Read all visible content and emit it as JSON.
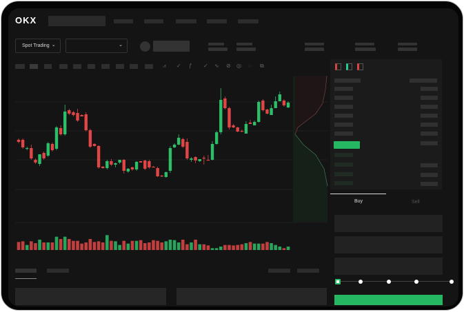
{
  "header": {
    "logo": "OKX"
  },
  "controls": {
    "market_type": "Spot Trading",
    "chevron": "⌄"
  },
  "orderbook": {
    "view_icons": [
      "orderbook-both-icon",
      "orderbook-buy-icon",
      "orderbook-sell-icon"
    ]
  },
  "trade": {
    "tabs": [
      {
        "label": "Buy",
        "active": true
      },
      {
        "label": "Sell",
        "active": false
      }
    ],
    "slider_level": 0,
    "slider_stops": 5,
    "submit_color": "#25b762"
  },
  "colors": {
    "up": "#2ebd68",
    "down": "#e04646",
    "background": "#141414"
  },
  "chart_data": {
    "type": "candlestick",
    "candles_ohlc": [
      [
        97,
        99,
        92,
        94
      ],
      [
        97,
        99,
        84,
        86
      ],
      [
        84,
        87,
        82,
        85
      ],
      [
        85,
        90,
        68,
        70
      ],
      [
        68,
        70,
        62,
        64
      ],
      [
        62,
        76,
        59,
        76
      ],
      [
        78,
        80,
        68,
        70
      ],
      [
        74,
        94,
        72,
        92
      ],
      [
        91,
        93,
        80,
        82
      ],
      [
        84,
        117,
        82,
        115
      ],
      [
        114,
        118,
        103,
        105
      ],
      [
        105,
        148,
        103,
        138
      ],
      [
        140,
        142,
        133,
        135
      ],
      [
        137,
        139,
        131,
        133
      ],
      [
        136,
        142,
        123,
        125
      ],
      [
        133,
        134,
        131,
        131
      ],
      [
        134,
        137,
        109,
        111
      ],
      [
        111,
        113,
        85,
        87
      ],
      [
        91,
        92,
        87,
        88
      ],
      [
        88,
        89,
        55,
        57
      ],
      [
        58,
        59,
        55,
        56
      ],
      [
        56,
        68,
        54,
        66
      ],
      [
        66,
        69,
        59,
        61
      ],
      [
        61,
        64,
        57,
        63
      ],
      [
        64,
        68,
        62,
        68
      ],
      [
        68,
        69,
        48,
        52
      ],
      [
        51,
        56,
        49,
        55
      ],
      [
        57,
        58,
        52,
        54
      ],
      [
        54,
        66,
        52,
        65
      ],
      [
        66,
        66,
        64,
        64
      ],
      [
        67,
        68,
        53,
        55
      ],
      [
        66,
        68,
        55,
        57
      ],
      [
        58,
        59,
        57,
        57
      ],
      [
        56,
        58,
        43,
        44
      ],
      [
        45,
        46,
        43,
        44
      ],
      [
        43,
        51,
        42,
        50
      ],
      [
        52,
        88,
        49,
        85
      ],
      [
        86,
        92,
        85,
        90
      ],
      [
        90,
        105,
        89,
        100
      ],
      [
        98,
        100,
        85,
        87
      ],
      [
        94,
        99,
        68,
        70
      ],
      [
        68,
        72,
        65,
        70
      ],
      [
        72,
        73,
        63,
        67
      ],
      [
        66,
        69,
        65,
        69
      ],
      [
        71,
        74,
        61,
        70
      ],
      [
        68,
        75,
        67,
        67
      ],
      [
        68,
        95,
        67,
        91
      ],
      [
        91,
        110,
        90,
        108
      ],
      [
        108,
        172,
        105,
        155
      ],
      [
        157,
        160,
        141,
        143
      ],
      [
        143,
        145,
        112,
        115
      ],
      [
        118,
        120,
        114,
        115
      ],
      [
        115,
        116,
        108,
        109
      ],
      [
        110,
        112,
        108,
        109
      ],
      [
        106,
        124,
        106,
        120
      ],
      [
        122,
        126,
        120,
        120
      ],
      [
        118,
        125,
        118,
        123
      ],
      [
        123,
        154,
        122,
        152
      ],
      [
        154,
        156,
        138,
        140
      ],
      [
        141,
        142,
        134,
        135
      ],
      [
        133,
        148,
        133,
        143
      ],
      [
        143,
        160,
        143,
        153
      ],
      [
        153,
        167,
        153,
        163
      ],
      [
        154,
        156,
        145,
        147
      ],
      [
        144,
        153,
        143,
        151
      ]
    ],
    "volumes": [
      35,
      38,
      22,
      38,
      30,
      45,
      33,
      33,
      33,
      58,
      48,
      58,
      48,
      40,
      40,
      28,
      33,
      48,
      35,
      38,
      33,
      65,
      40,
      38,
      22,
      40,
      28,
      40,
      40,
      43,
      30,
      33,
      43,
      40,
      33,
      38,
      45,
      43,
      33,
      45,
      25,
      33,
      45,
      25,
      25,
      20,
      8,
      8,
      15,
      22,
      22,
      20,
      22,
      25,
      30,
      35,
      28,
      28,
      28,
      35,
      30,
      22,
      15,
      8,
      15
    ],
    "grid": true
  }
}
